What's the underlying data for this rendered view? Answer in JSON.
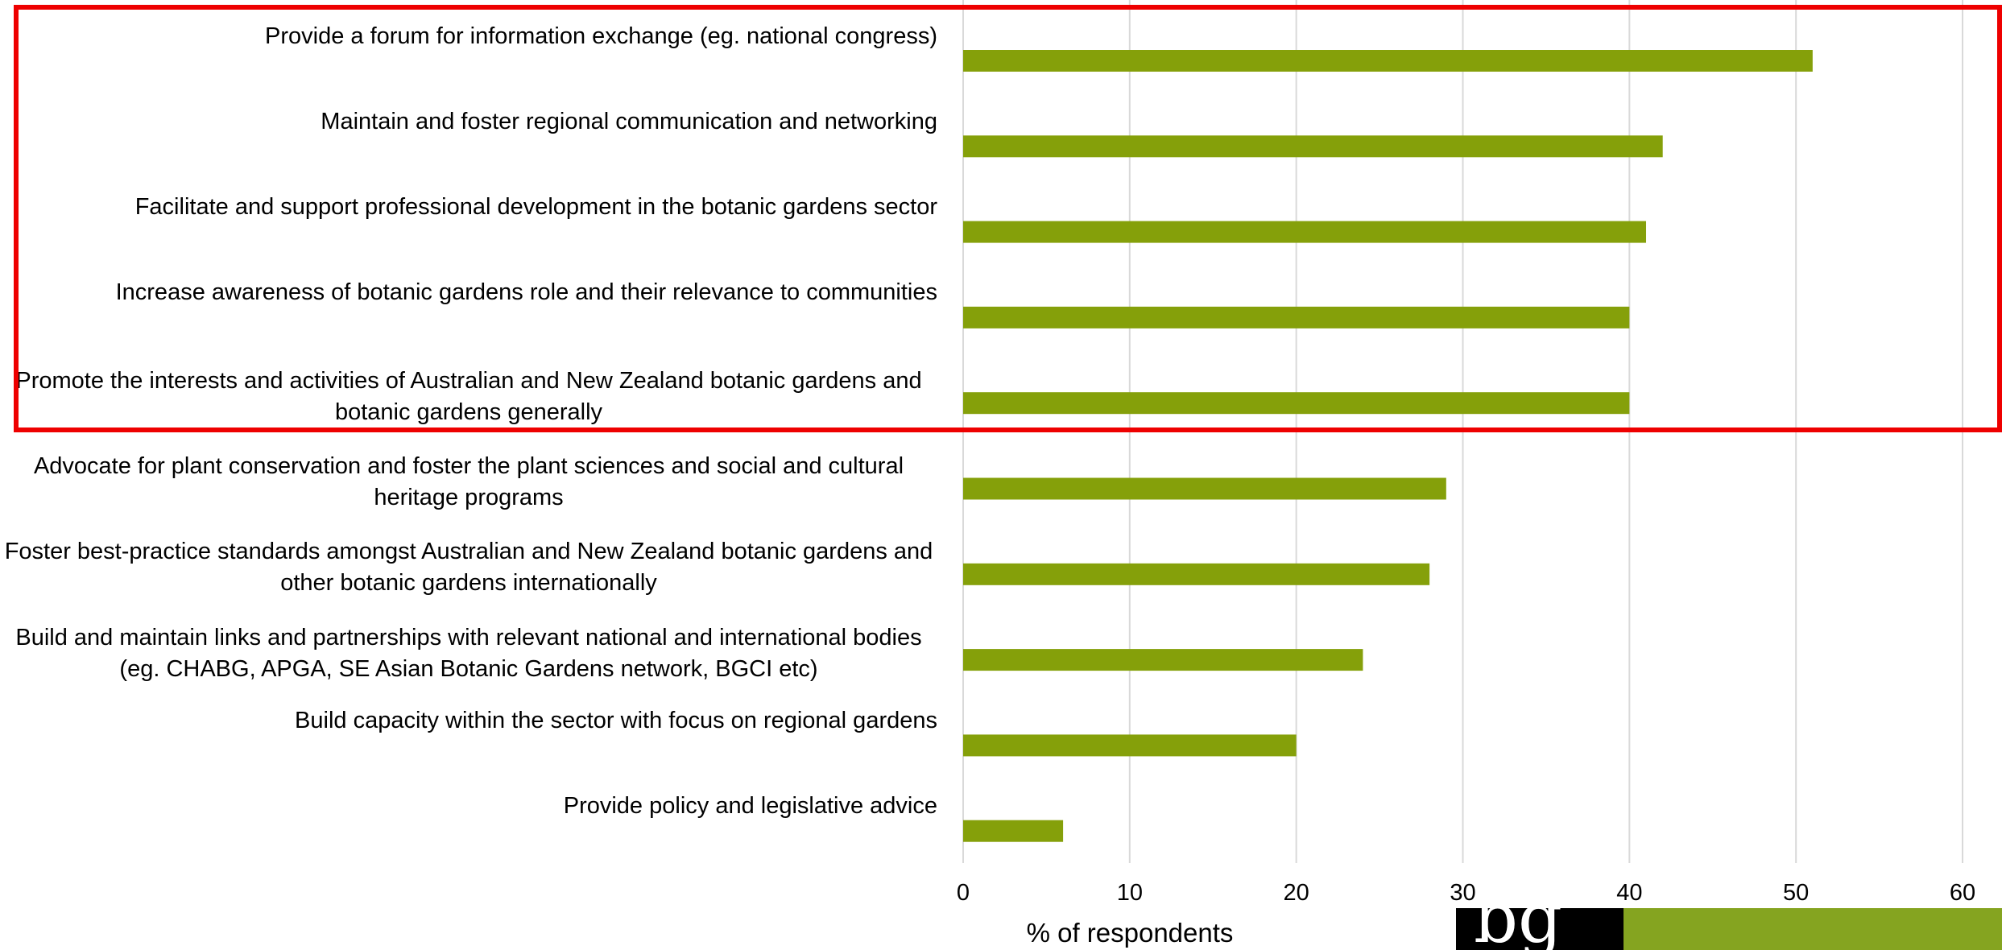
{
  "chart_data": {
    "type": "bar",
    "orientation": "horizontal",
    "categories": [
      [
        "Provide a forum for information exchange (eg. national congress)"
      ],
      [
        "Maintain and foster regional communication and networking"
      ],
      [
        "Facilitate and support professional development in the botanic gardens sector"
      ],
      [
        "Increase awareness of botanic gardens role and their relevance to communities"
      ],
      [
        "Promote the interests and activities of Australian and New Zealand botanic gardens and",
        "botanic gardens generally"
      ],
      [
        "Advocate for plant conservation and foster the plant sciences and social and cultural",
        "heritage programs"
      ],
      [
        "Foster best-practice standards amongst Australian and New Zealand botanic gardens and",
        "other botanic gardens internationally"
      ],
      [
        "Build and maintain links and partnerships with relevant national and international bodies",
        "(eg. CHABG, APGA, SE Asian Botanic Gardens network, BGCI etc)"
      ],
      [
        "Build capacity within the sector with focus on regional gardens"
      ],
      [
        "Provide policy and legislative advice"
      ]
    ],
    "values": [
      51,
      42,
      41,
      40,
      40,
      29,
      28,
      24,
      20,
      6
    ],
    "xlabel": "% of respondents",
    "xlim": [
      0,
      60
    ],
    "xticks": [
      "0",
      "10",
      "20",
      "30",
      "40",
      "50",
      "60"
    ],
    "grid": "vertical",
    "bar_color": "#85a00a",
    "grid_color": "#d9d9d9",
    "highlight": {
      "from_index": 0,
      "to_index": 4,
      "color": "#ee0000"
    }
  },
  "logo": {
    "glyph": "bg",
    "colors": [
      "#000000",
      "#85a420"
    ]
  }
}
